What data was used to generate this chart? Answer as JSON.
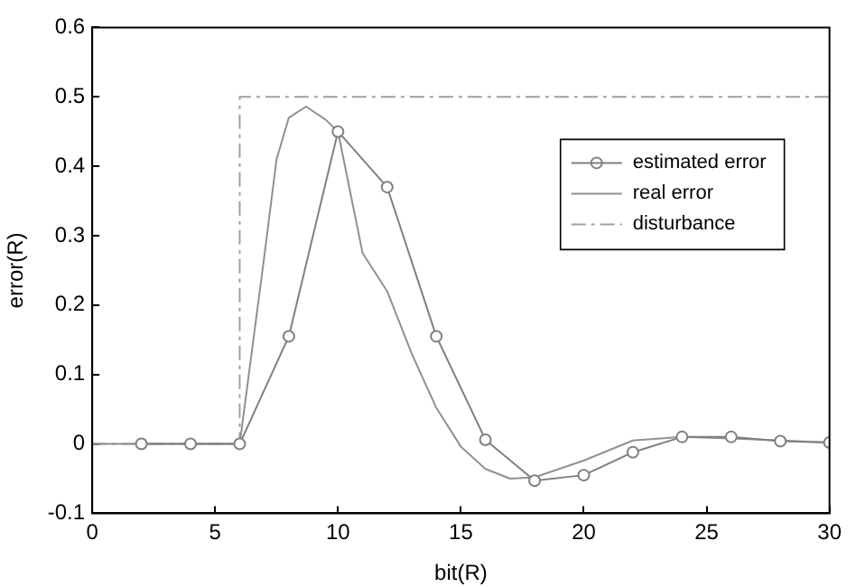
{
  "chart_data": {
    "type": "line",
    "xlabel": "bit(R)",
    "ylabel": "error(R)",
    "xlim": [
      0,
      30
    ],
    "xticks": [
      0,
      5,
      10,
      15,
      20,
      25,
      30
    ],
    "ylim": [
      -0.1,
      0.6
    ],
    "yticks": [
      -0.1,
      0,
      0.1,
      0.2,
      0.3,
      0.4,
      0.5,
      0.6
    ],
    "grid": false,
    "legend": "right",
    "series": [
      {
        "name": "estimated error",
        "color": "#808080",
        "marker": "circle",
        "line_style": "solid",
        "x": [
          2,
          4,
          6,
          8,
          10,
          12,
          14,
          16,
          18,
          20,
          22,
          24,
          26,
          28,
          30
        ],
        "values": [
          0,
          0,
          0,
          0.155,
          0.45,
          0.37,
          0.155,
          0.006,
          -0.053,
          -0.045,
          -0.012,
          0.01,
          0.01,
          0.004,
          0.002
        ]
      },
      {
        "name": "real error",
        "color": "#909090",
        "marker": "none",
        "line_style": "solid",
        "x": [
          0,
          6,
          7,
          7.5,
          8,
          8.7,
          9.5,
          10,
          11,
          12,
          13,
          14,
          15,
          16,
          17,
          18,
          20,
          22,
          24,
          26,
          30
        ],
        "values": [
          0,
          0,
          0.27,
          0.41,
          0.47,
          0.486,
          0.467,
          0.45,
          0.275,
          0.22,
          0.13,
          0.052,
          -0.004,
          -0.036,
          -0.05,
          -0.048,
          -0.024,
          0.005,
          0.01,
          0.008,
          0.002
        ]
      },
      {
        "name": "disturbance",
        "color": "#a0a0a0",
        "marker": "none",
        "line_style": "dashed",
        "x": [
          0,
          6,
          6,
          30
        ],
        "values": [
          0,
          0,
          0.5,
          0.5
        ]
      }
    ]
  }
}
